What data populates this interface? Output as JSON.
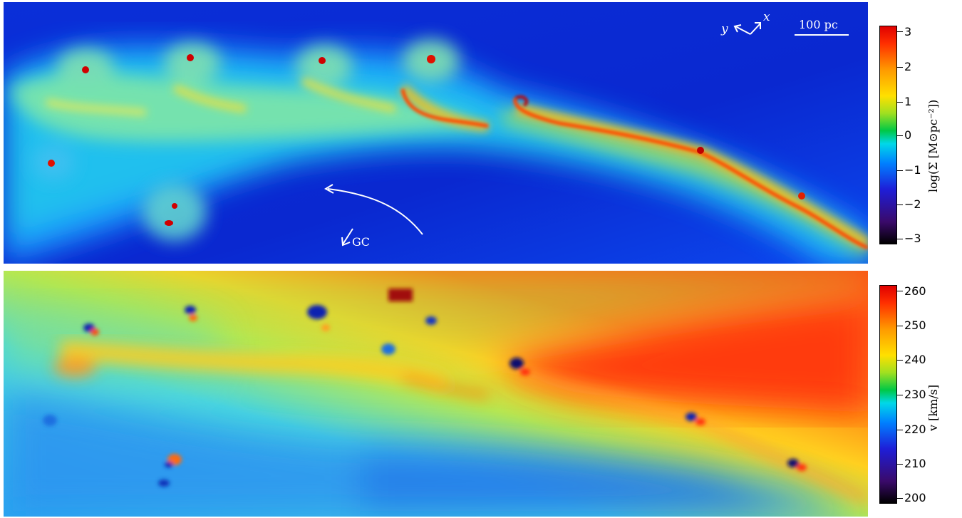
{
  "top_panel": {
    "scale_bar_label": "100 pc",
    "axis_x_label": "x",
    "axis_y_label": "y",
    "gc_label": "GC",
    "colorbar": {
      "title": "log(Σ [M⊙pc⁻²])",
      "ticks": [
        "3",
        "2",
        "1",
        "0",
        "−1",
        "−2",
        "−3"
      ]
    }
  },
  "bottom_panel": {
    "colorbar": {
      "title": "v [km/s]",
      "ticks": [
        "260",
        "250",
        "240",
        "230",
        "220",
        "210",
        "200"
      ]
    }
  },
  "colors": {
    "background_low": "#0a2ad8",
    "background_mid": "#18a0ff",
    "filament": "#ff5000",
    "filament_core": "#c00000",
    "diffuse": "#9fe6a0",
    "velocity_high": "#ff4a10",
    "velocity_mid": "#f0d830",
    "velocity_low": "#20a0f0"
  }
}
